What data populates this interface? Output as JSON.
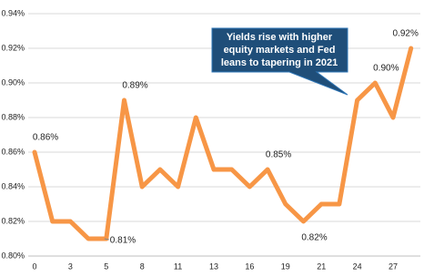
{
  "chart_data": {
    "type": "line",
    "categories": [
      "0",
      null,
      "3",
      null,
      "5",
      null,
      "8",
      null,
      "11",
      null,
      "13",
      null,
      "16",
      null,
      "19",
      null,
      "21",
      null,
      "24",
      null,
      "27",
      null
    ],
    "series": [
      {
        "color": "#f79646",
        "values": [
          0.86,
          0.82,
          0.82,
          0.81,
          0.81,
          0.89,
          0.84,
          0.85,
          0.84,
          0.88,
          0.85,
          0.85,
          0.84,
          0.85,
          0.83,
          0.82,
          0.83,
          0.83,
          0.89,
          0.9,
          0.88,
          0.92
        ],
        "value_labels": [
          "0.86%",
          null,
          null,
          null,
          "0.81%",
          "0.89%",
          null,
          null,
          null,
          null,
          null,
          null,
          null,
          "0.85%",
          null,
          "0.82%",
          null,
          null,
          null,
          "0.90%",
          null,
          "0.92%"
        ]
      }
    ],
    "ylim": [
      0.8,
      0.94
    ],
    "yticks": [
      {
        "value": 0.8,
        "label": "0.80%"
      },
      {
        "value": 0.82,
        "label": "0.82%"
      },
      {
        "value": 0.84,
        "label": "0.84%"
      },
      {
        "value": 0.86,
        "label": "0.86%"
      },
      {
        "value": 0.88,
        "label": "0.88%"
      },
      {
        "value": 0.9,
        "label": "0.90%"
      },
      {
        "value": 0.92,
        "label": "0.92%"
      },
      {
        "value": 0.94,
        "label": "0.94%"
      }
    ],
    "grid": true,
    "annotation": [
      "Yields rise with higher",
      "equity markets and Fed",
      "leans to tapering in 2021"
    ]
  }
}
